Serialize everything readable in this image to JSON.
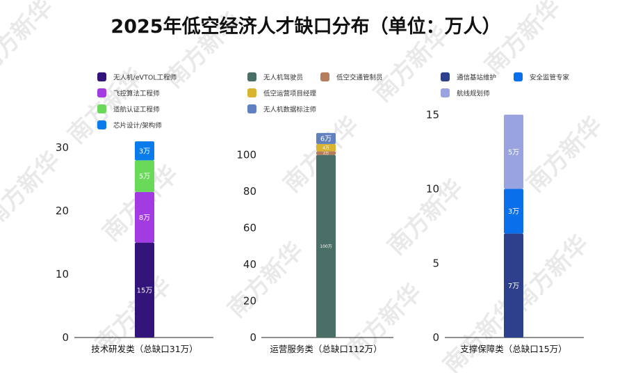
{
  "title": "2025年低空经济人才缺口分布（单位：万人）",
  "watermark": "南方新华",
  "chart_data": [
    {
      "type": "bar",
      "stacked": true,
      "category": "技术研发类（总缺口31万）",
      "ylim": [
        0,
        32
      ],
      "yticks": [
        0,
        10,
        20,
        30
      ],
      "legend_position": "top",
      "grid": false,
      "series": [
        {
          "name": "无人机/eVTOL工程师",
          "value": 15,
          "label": "15万",
          "color": "#33147a"
        },
        {
          "name": "飞控算法工程师",
          "value": 8,
          "label": "8万",
          "color": "#a23be2"
        },
        {
          "name": "适航认证工程师",
          "value": 5,
          "label": "5万",
          "color": "#6ad95a"
        },
        {
          "name": "芯片设计/架构师",
          "value": 3,
          "label": "3万",
          "color": "#0a7bea"
        }
      ]
    },
    {
      "type": "bar",
      "stacked": true,
      "category": "运营服务类（总缺口112万）",
      "ylim": [
        0,
        117
      ],
      "yticks": [
        0,
        20,
        40,
        60,
        80,
        100
      ],
      "legend_position": "top",
      "grid": false,
      "series": [
        {
          "name": "无人机驾驶员",
          "value": 100,
          "label": "100万",
          "color": "#4a6f66"
        },
        {
          "name": "低空交通管制员",
          "value": 2,
          "label": "2万",
          "color": "#b57d5b"
        },
        {
          "name": "低空运营项目经理",
          "value": 4,
          "label": "4万",
          "color": "#d9b430"
        },
        {
          "name": "无人机数据标注师",
          "value": 6,
          "label": "6万",
          "color": "#6080c0"
        }
      ]
    },
    {
      "type": "bar",
      "stacked": true,
      "category": "支撑保障类（总缺口15万）",
      "ylim": [
        0,
        15.6
      ],
      "yticks": [
        0,
        5,
        10,
        15
      ],
      "legend_position": "top",
      "grid": false,
      "series": [
        {
          "name": "通信基站维护",
          "value": 7,
          "label": "7万",
          "color": "#2e3f8c"
        },
        {
          "name": "安全监管专家",
          "value": 3,
          "label": "3万",
          "color": "#0a6fea"
        },
        {
          "name": "航线规划师",
          "value": 5,
          "label": "5万",
          "color": "#98a3e0"
        }
      ]
    }
  ]
}
